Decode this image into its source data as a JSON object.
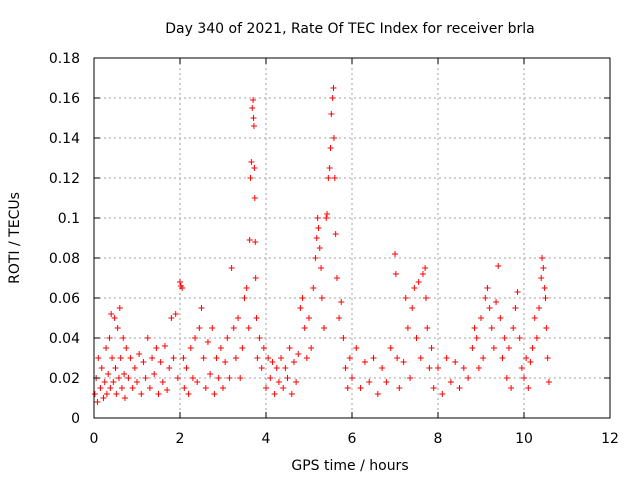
{
  "chart_data": {
    "type": "scatter",
    "title": "Day 340 of 2021, Rate Of TEC Index for receiver brla",
    "xlabel": "GPS time / hours",
    "ylabel": "ROTI / TECUs",
    "xlim": [
      0,
      12
    ],
    "ylim": [
      0,
      0.18
    ],
    "xticks": [
      0,
      2,
      4,
      6,
      8,
      10,
      12
    ],
    "xtick_labels": [
      "0",
      "2",
      "4",
      "6",
      "8",
      "10",
      "12"
    ],
    "yticks": [
      0,
      0.02,
      0.04,
      0.06,
      0.08,
      0.1,
      0.12,
      0.14,
      0.16,
      0.18
    ],
    "ytick_labels": [
      "0",
      "0.02",
      "0.04",
      "0.06",
      "0.08",
      "0.1",
      "0.12",
      "0.14",
      "0.16",
      "0.18"
    ],
    "grid": true,
    "marker": "plus",
    "color": "#ff0000",
    "points": [
      [
        0.02,
        0.012
      ],
      [
        0.05,
        0.02
      ],
      [
        0.08,
        0.008
      ],
      [
        0.1,
        0.03
      ],
      [
        0.15,
        0.015
      ],
      [
        0.18,
        0.025
      ],
      [
        0.22,
        0.01
      ],
      [
        0.25,
        0.018
      ],
      [
        0.28,
        0.035
      ],
      [
        0.3,
        0.012
      ],
      [
        0.33,
        0.022
      ],
      [
        0.36,
        0.04
      ],
      [
        0.38,
        0.015
      ],
      [
        0.4,
        0.052
      ],
      [
        0.42,
        0.03
      ],
      [
        0.45,
        0.018
      ],
      [
        0.48,
        0.05
      ],
      [
        0.5,
        0.025
      ],
      [
        0.52,
        0.012
      ],
      [
        0.55,
        0.045
      ],
      [
        0.58,
        0.02
      ],
      [
        0.6,
        0.055
      ],
      [
        0.62,
        0.03
      ],
      [
        0.65,
        0.015
      ],
      [
        0.68,
        0.04
      ],
      [
        0.7,
        0.022
      ],
      [
        0.72,
        0.01
      ],
      [
        0.75,
        0.035
      ],
      [
        0.8,
        0.02
      ],
      [
        0.85,
        0.03
      ],
      [
        0.9,
        0.015
      ],
      [
        0.95,
        0.025
      ],
      [
        1.0,
        0.018
      ],
      [
        1.05,
        0.032
      ],
      [
        1.1,
        0.012
      ],
      [
        1.15,
        0.028
      ],
      [
        1.2,
        0.02
      ],
      [
        1.25,
        0.04
      ],
      [
        1.3,
        0.015
      ],
      [
        1.35,
        0.03
      ],
      [
        1.4,
        0.022
      ],
      [
        1.45,
        0.035
      ],
      [
        1.5,
        0.012
      ],
      [
        1.55,
        0.028
      ],
      [
        1.6,
        0.018
      ],
      [
        1.65,
        0.036
      ],
      [
        1.7,
        0.014
      ],
      [
        1.75,
        0.025
      ],
      [
        1.8,
        0.05
      ],
      [
        1.85,
        0.03
      ],
      [
        1.9,
        0.052
      ],
      [
        1.95,
        0.02
      ],
      [
        2.0,
        0.068
      ],
      [
        2.02,
        0.066
      ],
      [
        2.05,
        0.065
      ],
      [
        2.08,
        0.03
      ],
      [
        2.1,
        0.015
      ],
      [
        2.15,
        0.025
      ],
      [
        2.2,
        0.012
      ],
      [
        2.25,
        0.035
      ],
      [
        2.3,
        0.02
      ],
      [
        2.35,
        0.04
      ],
      [
        2.4,
        0.018
      ],
      [
        2.45,
        0.045
      ],
      [
        2.5,
        0.055
      ],
      [
        2.55,
        0.03
      ],
      [
        2.6,
        0.015
      ],
      [
        2.65,
        0.038
      ],
      [
        2.7,
        0.022
      ],
      [
        2.75,
        0.045
      ],
      [
        2.8,
        0.012
      ],
      [
        2.85,
        0.03
      ],
      [
        2.9,
        0.02
      ],
      [
        2.95,
        0.035
      ],
      [
        3.0,
        0.015
      ],
      [
        3.05,
        0.028
      ],
      [
        3.1,
        0.04
      ],
      [
        3.15,
        0.02
      ],
      [
        3.2,
        0.075
      ],
      [
        3.25,
        0.045
      ],
      [
        3.3,
        0.03
      ],
      [
        3.35,
        0.05
      ],
      [
        3.4,
        0.02
      ],
      [
        3.45,
        0.035
      ],
      [
        3.5,
        0.06
      ],
      [
        3.55,
        0.065
      ],
      [
        3.6,
        0.045
      ],
      [
        3.62,
        0.089
      ],
      [
        3.64,
        0.12
      ],
      [
        3.66,
        0.128
      ],
      [
        3.68,
        0.155
      ],
      [
        3.7,
        0.159
      ],
      [
        3.71,
        0.15
      ],
      [
        3.72,
        0.146
      ],
      [
        3.73,
        0.125
      ],
      [
        3.74,
        0.11
      ],
      [
        3.75,
        0.088
      ],
      [
        3.76,
        0.07
      ],
      [
        3.78,
        0.05
      ],
      [
        3.8,
        0.03
      ],
      [
        3.85,
        0.04
      ],
      [
        3.9,
        0.025
      ],
      [
        3.95,
        0.035
      ],
      [
        4.0,
        0.015
      ],
      [
        4.05,
        0.03
      ],
      [
        4.1,
        0.02
      ],
      [
        4.15,
        0.028
      ],
      [
        4.2,
        0.012
      ],
      [
        4.25,
        0.025
      ],
      [
        4.3,
        0.018
      ],
      [
        4.35,
        0.03
      ],
      [
        4.4,
        0.015
      ],
      [
        4.45,
        0.025
      ],
      [
        4.5,
        0.02
      ],
      [
        4.55,
        0.035
      ],
      [
        4.6,
        0.012
      ],
      [
        4.65,
        0.028
      ],
      [
        4.7,
        0.018
      ],
      [
        4.75,
        0.032
      ],
      [
        4.8,
        0.055
      ],
      [
        4.85,
        0.06
      ],
      [
        4.9,
        0.045
      ],
      [
        4.95,
        0.03
      ],
      [
        5.0,
        0.05
      ],
      [
        5.05,
        0.035
      ],
      [
        5.1,
        0.065
      ],
      [
        5.15,
        0.08
      ],
      [
        5.18,
        0.09
      ],
      [
        5.2,
        0.1
      ],
      [
        5.22,
        0.095
      ],
      [
        5.25,
        0.085
      ],
      [
        5.28,
        0.075
      ],
      [
        5.3,
        0.06
      ],
      [
        5.35,
        0.045
      ],
      [
        5.4,
        0.1
      ],
      [
        5.42,
        0.102
      ],
      [
        5.45,
        0.12
      ],
      [
        5.48,
        0.125
      ],
      [
        5.5,
        0.135
      ],
      [
        5.52,
        0.152
      ],
      [
        5.55,
        0.16
      ],
      [
        5.57,
        0.165
      ],
      [
        5.58,
        0.14
      ],
      [
        5.6,
        0.12
      ],
      [
        5.62,
        0.092
      ],
      [
        5.65,
        0.07
      ],
      [
        5.7,
        0.05
      ],
      [
        5.75,
        0.058
      ],
      [
        5.8,
        0.04
      ],
      [
        5.85,
        0.025
      ],
      [
        5.9,
        0.015
      ],
      [
        5.95,
        0.03
      ],
      [
        6.0,
        0.02
      ],
      [
        6.1,
        0.035
      ],
      [
        6.2,
        0.015
      ],
      [
        6.3,
        0.028
      ],
      [
        6.4,
        0.018
      ],
      [
        6.5,
        0.03
      ],
      [
        6.6,
        0.012
      ],
      [
        6.7,
        0.025
      ],
      [
        6.8,
        0.018
      ],
      [
        6.9,
        0.035
      ],
      [
        7.0,
        0.082
      ],
      [
        7.02,
        0.072
      ],
      [
        7.05,
        0.03
      ],
      [
        7.1,
        0.015
      ],
      [
        7.2,
        0.028
      ],
      [
        7.25,
        0.06
      ],
      [
        7.3,
        0.045
      ],
      [
        7.35,
        0.02
      ],
      [
        7.4,
        0.055
      ],
      [
        7.45,
        0.065
      ],
      [
        7.5,
        0.04
      ],
      [
        7.55,
        0.068
      ],
      [
        7.6,
        0.03
      ],
      [
        7.65,
        0.072
      ],
      [
        7.7,
        0.075
      ],
      [
        7.72,
        0.06
      ],
      [
        7.75,
        0.045
      ],
      [
        7.8,
        0.025
      ],
      [
        7.85,
        0.035
      ],
      [
        7.9,
        0.015
      ],
      [
        8.0,
        0.025
      ],
      [
        8.1,
        0.012
      ],
      [
        8.2,
        0.03
      ],
      [
        8.3,
        0.018
      ],
      [
        8.4,
        0.028
      ],
      [
        8.5,
        0.015
      ],
      [
        8.6,
        0.025
      ],
      [
        8.7,
        0.02
      ],
      [
        8.8,
        0.035
      ],
      [
        8.85,
        0.045
      ],
      [
        8.9,
        0.04
      ],
      [
        8.95,
        0.025
      ],
      [
        9.0,
        0.05
      ],
      [
        9.05,
        0.03
      ],
      [
        9.1,
        0.06
      ],
      [
        9.15,
        0.065
      ],
      [
        9.2,
        0.055
      ],
      [
        9.25,
        0.045
      ],
      [
        9.3,
        0.035
      ],
      [
        9.35,
        0.058
      ],
      [
        9.4,
        0.076
      ],
      [
        9.45,
        0.05
      ],
      [
        9.5,
        0.03
      ],
      [
        9.55,
        0.04
      ],
      [
        9.6,
        0.02
      ],
      [
        9.65,
        0.035
      ],
      [
        9.7,
        0.015
      ],
      [
        9.75,
        0.045
      ],
      [
        9.8,
        0.055
      ],
      [
        9.85,
        0.063
      ],
      [
        9.9,
        0.04
      ],
      [
        9.95,
        0.025
      ],
      [
        10.0,
        0.02
      ],
      [
        10.05,
        0.03
      ],
      [
        10.1,
        0.015
      ],
      [
        10.15,
        0.028
      ],
      [
        10.2,
        0.035
      ],
      [
        10.25,
        0.05
      ],
      [
        10.3,
        0.04
      ],
      [
        10.35,
        0.055
      ],
      [
        10.4,
        0.07
      ],
      [
        10.42,
        0.08
      ],
      [
        10.45,
        0.075
      ],
      [
        10.48,
        0.065
      ],
      [
        10.5,
        0.06
      ],
      [
        10.52,
        0.045
      ],
      [
        10.55,
        0.03
      ],
      [
        10.58,
        0.018
      ]
    ]
  }
}
